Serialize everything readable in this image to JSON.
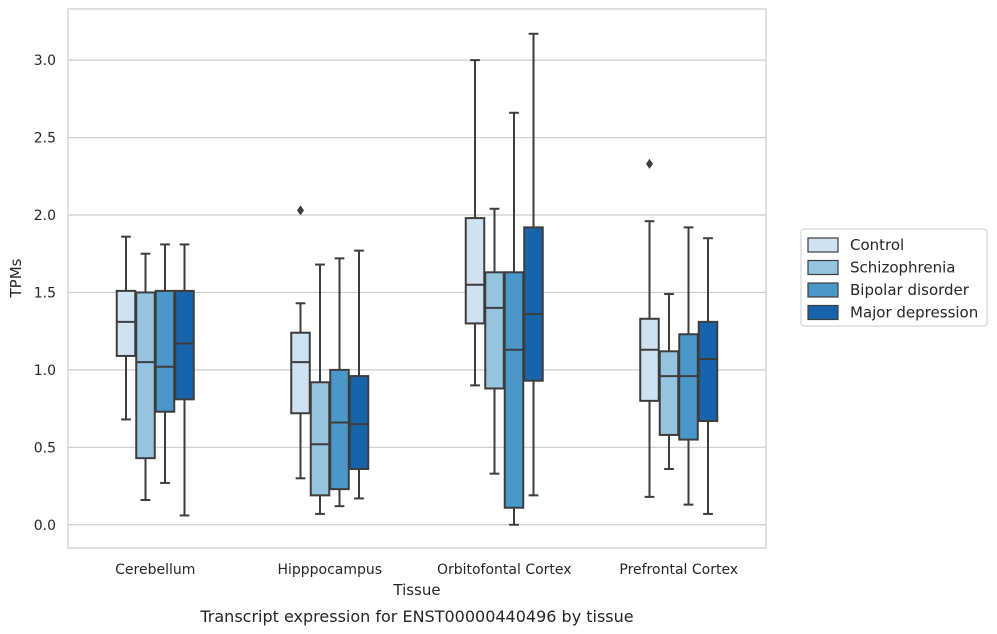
{
  "chart_data": {
    "type": "box",
    "title": "",
    "caption": "Transcript expression for ENST00000440496 by tissue",
    "xlabel": "Tissue",
    "ylabel": "TPMs",
    "ylim": [
      -0.15,
      3.33
    ],
    "yticks": [
      0.0,
      0.5,
      1.0,
      1.5,
      2.0,
      2.5,
      3.0
    ],
    "ytick_labels": [
      "0.0",
      "0.5",
      "1.0",
      "1.5",
      "2.0",
      "2.5",
      "3.0"
    ],
    "grid": "horizontal",
    "legend_position": "right",
    "categories": [
      "Cerebellum",
      "Hipppocampus",
      "Orbitofontal Cortex",
      "Prefrontal Cortex"
    ],
    "series": [
      {
        "name": "Control",
        "color": "#d0e1f2",
        "boxes": [
          {
            "min": 0.68,
            "q1": 1.09,
            "median": 1.31,
            "q3": 1.51,
            "max": 1.86,
            "outliers": []
          },
          {
            "min": 0.3,
            "q1": 0.72,
            "median": 1.05,
            "q3": 1.24,
            "max": 1.43,
            "outliers": [
              2.03
            ]
          },
          {
            "min": 0.9,
            "q1": 1.3,
            "median": 1.55,
            "q3": 1.98,
            "max": 3.0,
            "outliers": []
          },
          {
            "min": 0.18,
            "q1": 0.8,
            "median": 1.13,
            "q3": 1.33,
            "max": 1.96,
            "outliers": [
              2.33
            ]
          }
        ]
      },
      {
        "name": "Schizophrenia",
        "color": "#94c4df",
        "boxes": [
          {
            "min": 0.16,
            "q1": 0.43,
            "median": 1.05,
            "q3": 1.5,
            "max": 1.75,
            "outliers": []
          },
          {
            "min": 0.07,
            "q1": 0.19,
            "median": 0.52,
            "q3": 0.92,
            "max": 1.68,
            "outliers": []
          },
          {
            "min": 0.33,
            "q1": 0.88,
            "median": 1.4,
            "q3": 1.63,
            "max": 2.04,
            "outliers": []
          },
          {
            "min": 0.36,
            "q1": 0.58,
            "median": 0.96,
            "q3": 1.12,
            "max": 1.49,
            "outliers": []
          }
        ]
      },
      {
        "name": "Bipolar disorder",
        "color": "#4a98c9",
        "boxes": [
          {
            "min": 0.27,
            "q1": 0.73,
            "median": 1.02,
            "q3": 1.51,
            "max": 1.81,
            "outliers": []
          },
          {
            "min": 0.12,
            "q1": 0.23,
            "median": 0.66,
            "q3": 1.0,
            "max": 1.72,
            "outliers": []
          },
          {
            "min": 0.0,
            "q1": 0.11,
            "median": 1.13,
            "q3": 1.63,
            "max": 2.66,
            "outliers": []
          },
          {
            "min": 0.13,
            "q1": 0.55,
            "median": 0.96,
            "q3": 1.23,
            "max": 1.92,
            "outliers": []
          }
        ]
      },
      {
        "name": "Major depression",
        "color": "#1764ab",
        "boxes": [
          {
            "min": 0.06,
            "q1": 0.81,
            "median": 1.17,
            "q3": 1.51,
            "max": 1.81,
            "outliers": []
          },
          {
            "min": 0.17,
            "q1": 0.36,
            "median": 0.65,
            "q3": 0.96,
            "max": 1.77,
            "outliers": []
          },
          {
            "min": 0.19,
            "q1": 0.93,
            "median": 1.36,
            "q3": 1.92,
            "max": 3.17,
            "outliers": []
          },
          {
            "min": 0.07,
            "q1": 0.67,
            "median": 1.07,
            "q3": 1.31,
            "max": 1.85,
            "outliers": []
          }
        ]
      }
    ]
  }
}
